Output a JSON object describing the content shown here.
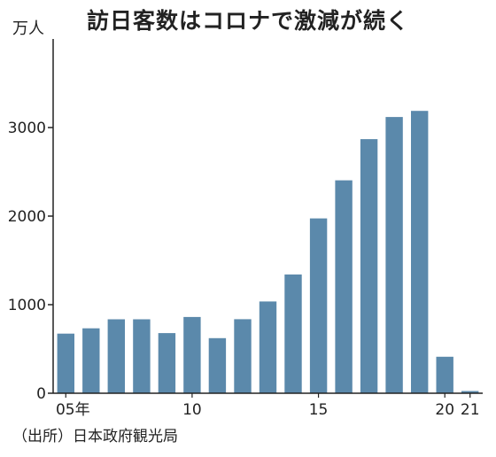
{
  "chart_data": {
    "type": "bar",
    "title": "訪日客数はコロナで激減が続く",
    "unit_label": "万人",
    "source": "（出所）日本政府観光局",
    "categories": [
      "05",
      "06",
      "07",
      "08",
      "09",
      "10",
      "11",
      "12",
      "13",
      "14",
      "15",
      "16",
      "17",
      "18",
      "19",
      "20",
      "21"
    ],
    "x_tick_labels": [
      {
        "category": "05",
        "label": "05年"
      },
      {
        "category": "10",
        "label": "10"
      },
      {
        "category": "15",
        "label": "15"
      },
      {
        "category": "20",
        "label": "20"
      },
      {
        "category": "21",
        "label": "21"
      }
    ],
    "values": [
      673,
      733,
      835,
      835,
      679,
      861,
      622,
      836,
      1036,
      1341,
      1974,
      2404,
      2869,
      3119,
      3188,
      412,
      25
    ],
    "ylim": [
      0,
      4000
    ],
    "yticks": [
      0,
      1000,
      2000,
      3000
    ],
    "bar_color": "#5b89ab",
    "grid": false
  }
}
